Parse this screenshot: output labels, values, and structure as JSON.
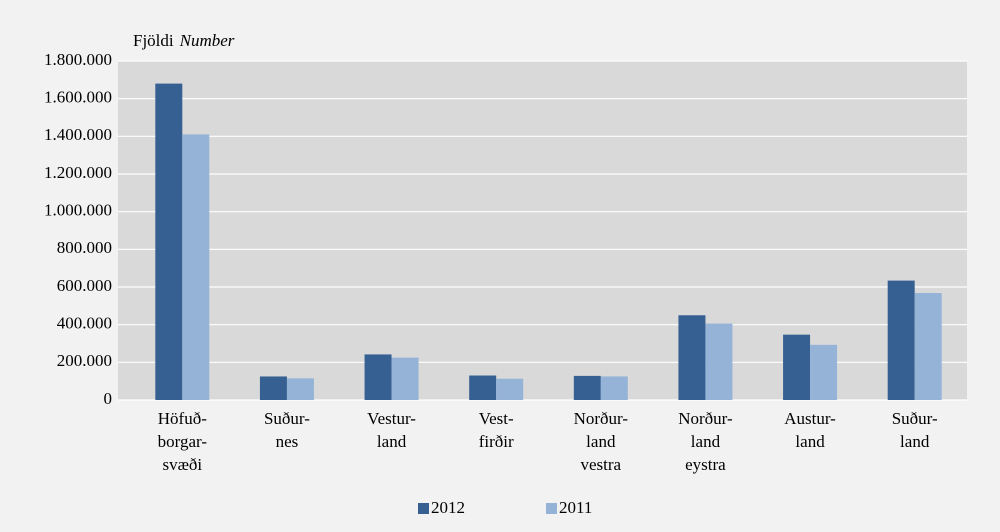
{
  "chart_data": {
    "type": "bar",
    "y_axis_label": {
      "text": "Fjöldi",
      "translation": "Number"
    },
    "categories": [
      [
        "Höfuð-",
        "borgar-",
        "svæði"
      ],
      [
        "Suður-",
        "nes"
      ],
      [
        "Vestur-",
        "land"
      ],
      [
        "Vest-",
        "firðir"
      ],
      [
        "Norður-",
        "land",
        "vestra"
      ],
      [
        "Norður-",
        "land",
        "eystra"
      ],
      [
        "Austur-",
        "land"
      ],
      [
        "Suður-",
        "land"
      ]
    ],
    "series": [
      {
        "name": "2012",
        "color": "#366092",
        "values": [
          1680000,
          125000,
          242000,
          130000,
          128000,
          450000,
          347000,
          634000
        ]
      },
      {
        "name": "2011",
        "color": "#95b3d7",
        "values": [
          1410000,
          115000,
          225000,
          113000,
          125000,
          406000,
          293000,
          568000
        ]
      }
    ],
    "ylim": [
      0,
      1800000
    ],
    "yticks": [
      0,
      {
        "value": 200000,
        "label": "200.000"
      },
      {
        "value": 400000,
        "label": "400.000"
      },
      {
        "value": 600000,
        "label": "600.000"
      },
      {
        "value": 800000,
        "label": "800.000"
      },
      {
        "value": 1000000,
        "label": "1.000.000"
      },
      {
        "value": 1200000,
        "label": "1.200.000"
      },
      {
        "value": 1400000,
        "label": "1.400.000"
      },
      {
        "value": 1600000,
        "label": "1.600.000"
      },
      {
        "value": 1800000,
        "label": "1.800.000"
      }
    ],
    "grid": true,
    "legend": "bottom"
  }
}
